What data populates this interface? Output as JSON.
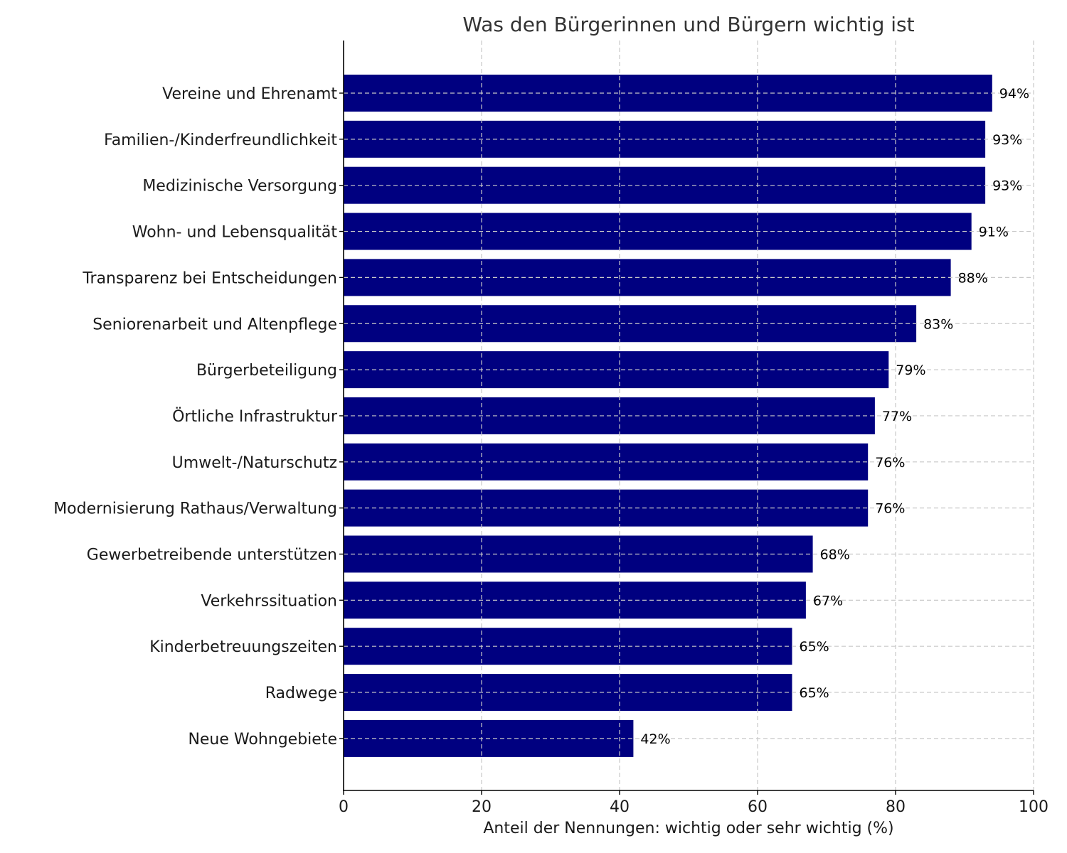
{
  "chart_data": {
    "type": "bar",
    "orientation": "horizontal",
    "title": "Was den Bürgerinnen und Bürgern wichtig ist",
    "xlabel": "Anteil der Nennungen: wichtig oder sehr wichtig (%)",
    "ylabel": "",
    "xlim": [
      0,
      100
    ],
    "xticks": [
      0,
      20,
      40,
      60,
      80,
      100
    ],
    "grid": true,
    "bar_color": "#000080",
    "categories": [
      "Vereine und Ehrenamt",
      "Familien-/Kinderfreundlichkeit",
      "Medizinische Versorgung",
      "Wohn- und Lebensqualität",
      "Transparenz bei Entscheidungen",
      "Seniorenarbeit und Altenpflege",
      "Bürgerbeteiligung",
      "Örtliche Infrastruktur",
      "Umwelt-/Naturschutz",
      "Modernisierung Rathaus/Verwaltung",
      "Gewerbetreibende unterstützen",
      "Verkehrssituation",
      "Kinderbetreuungszeiten",
      "Radwege",
      "Neue Wohngebiete"
    ],
    "values": [
      94,
      93,
      93,
      91,
      88,
      83,
      79,
      77,
      76,
      76,
      68,
      67,
      65,
      65,
      42
    ],
    "value_labels": [
      "94%",
      "93%",
      "93%",
      "91%",
      "88%",
      "83%",
      "79%",
      "77%",
      "76%",
      "76%",
      "68%",
      "67%",
      "65%",
      "65%",
      "42%"
    ]
  }
}
